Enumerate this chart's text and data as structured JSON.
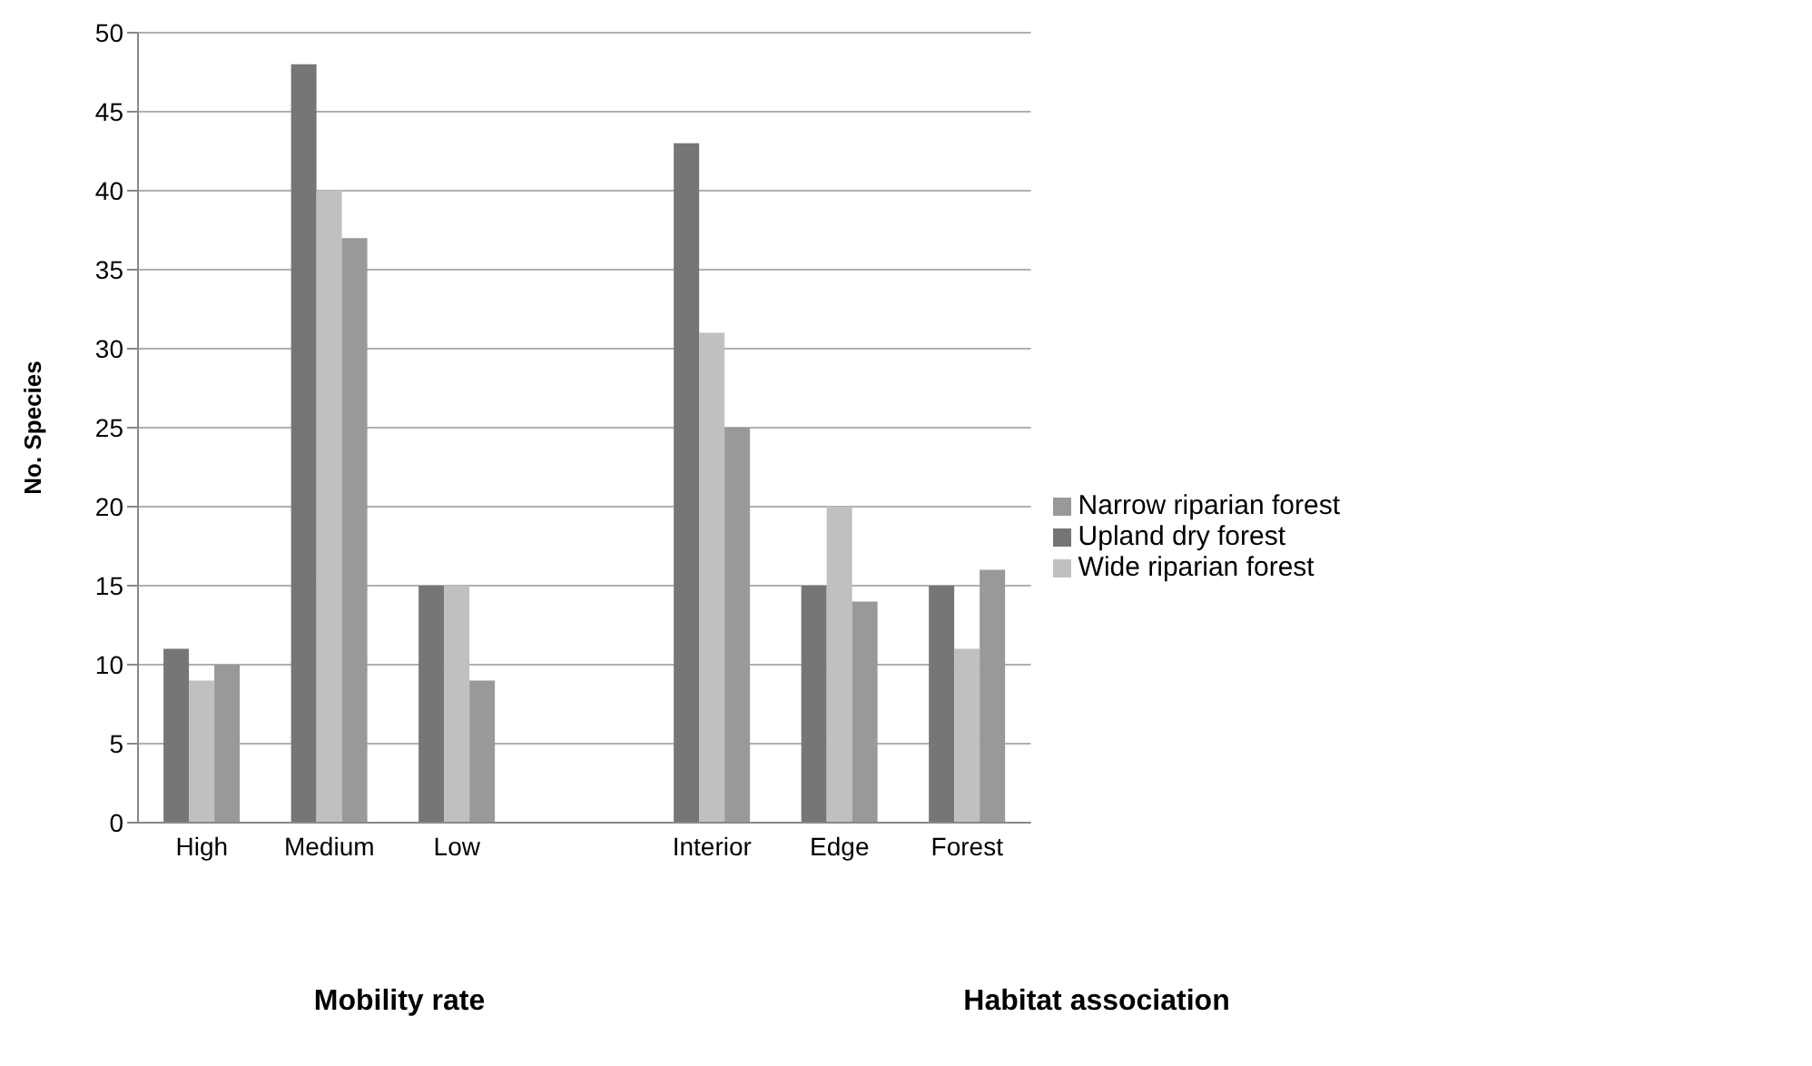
{
  "chart_data": {
    "type": "bar",
    "ylabel": "No. Species",
    "categories": [
      "High",
      "Medium",
      "Low",
      null,
      "Interior",
      "Edge",
      "Forest"
    ],
    "series": [
      {
        "name": "Upland dry forest",
        "color": "#767676",
        "values": [
          11,
          48,
          15,
          null,
          43,
          15,
          15
        ]
      },
      {
        "name": "Wide riparian forest",
        "color": "#c0c0c0",
        "values": [
          9,
          40,
          15,
          null,
          31,
          20,
          11
        ]
      },
      {
        "name": "Narrow riparian forest",
        "color": "#999999",
        "values": [
          10,
          37,
          9,
          null,
          25,
          14,
          16
        ]
      }
    ],
    "ylim": [
      0,
      50
    ],
    "yticks": [
      0,
      5,
      10,
      15,
      20,
      25,
      30,
      35,
      40,
      45,
      50
    ],
    "grid": "y",
    "legend": "right",
    "annotations": [
      "Mobility rate",
      "Habitat association"
    ]
  }
}
